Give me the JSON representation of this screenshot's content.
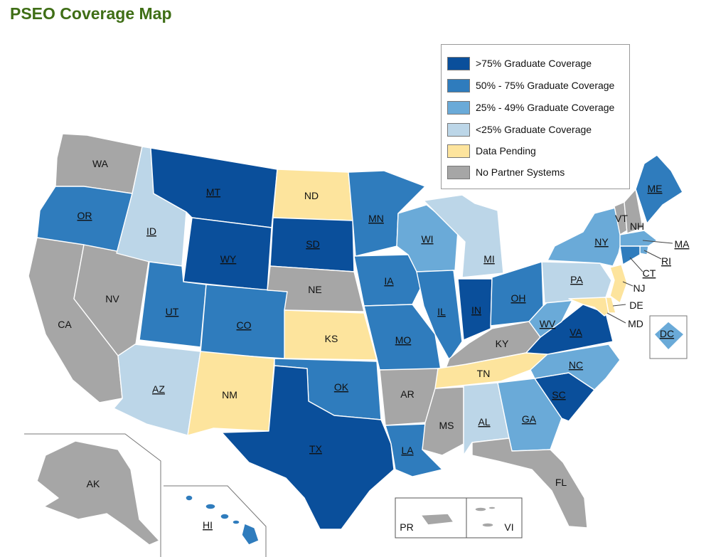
{
  "title": "PSEO Coverage Map",
  "colors": {
    "gt75": "#0a4f9b",
    "50to75": "#2f7cbd",
    "25to49": "#6aaad8",
    "lt25": "#bcd6e8",
    "pending": "#fde49d",
    "none": "#a6a6a6"
  },
  "legend": [
    {
      "key": "gt75",
      "label": ">75% Graduate Coverage"
    },
    {
      "key": "50to75",
      "label": "50% - 75% Graduate Coverage"
    },
    {
      "key": "25to49",
      "label": "25% - 49% Graduate Coverage"
    },
    {
      "key": "lt25",
      "label": "<25% Graduate Coverage"
    },
    {
      "key": "pending",
      "label": "Data Pending"
    },
    {
      "key": "none",
      "label": "No Partner Systems"
    }
  ],
  "states": {
    "WA": {
      "label": "WA",
      "cat": "none",
      "link": false
    },
    "OR": {
      "label": "OR",
      "cat": "50to75",
      "link": true
    },
    "CA": {
      "label": "CA",
      "cat": "none",
      "link": false
    },
    "NV": {
      "label": "NV",
      "cat": "none",
      "link": false
    },
    "ID": {
      "label": "ID",
      "cat": "lt25",
      "link": true
    },
    "MT": {
      "label": "MT",
      "cat": "gt75",
      "link": true
    },
    "WY": {
      "label": "WY",
      "cat": "gt75",
      "link": true
    },
    "UT": {
      "label": "UT",
      "cat": "50to75",
      "link": true
    },
    "CO": {
      "label": "CO",
      "cat": "50to75",
      "link": true
    },
    "AZ": {
      "label": "AZ",
      "cat": "lt25",
      "link": true
    },
    "NM": {
      "label": "NM",
      "cat": "pending",
      "link": false
    },
    "ND": {
      "label": "ND",
      "cat": "pending",
      "link": false
    },
    "SD": {
      "label": "SD",
      "cat": "gt75",
      "link": true
    },
    "NE": {
      "label": "NE",
      "cat": "none",
      "link": false
    },
    "KS": {
      "label": "KS",
      "cat": "pending",
      "link": false
    },
    "OK": {
      "label": "OK",
      "cat": "50to75",
      "link": true
    },
    "TX": {
      "label": "TX",
      "cat": "gt75",
      "link": true
    },
    "MN": {
      "label": "MN",
      "cat": "50to75",
      "link": true
    },
    "IA": {
      "label": "IA",
      "cat": "50to75",
      "link": true
    },
    "MO": {
      "label": "MO",
      "cat": "50to75",
      "link": true
    },
    "AR": {
      "label": "AR",
      "cat": "none",
      "link": false
    },
    "LA": {
      "label": "LA",
      "cat": "50to75",
      "link": true
    },
    "WI": {
      "label": "WI",
      "cat": "25to49",
      "link": true
    },
    "IL": {
      "label": "IL",
      "cat": "50to75",
      "link": true
    },
    "MI": {
      "label": "MI",
      "cat": "lt25",
      "link": true
    },
    "IN": {
      "label": "IN",
      "cat": "gt75",
      "link": true
    },
    "OH": {
      "label": "OH",
      "cat": "50to75",
      "link": true
    },
    "KY": {
      "label": "KY",
      "cat": "none",
      "link": false
    },
    "TN": {
      "label": "TN",
      "cat": "pending",
      "link": false
    },
    "MS": {
      "label": "MS",
      "cat": "none",
      "link": false
    },
    "AL": {
      "label": "AL",
      "cat": "lt25",
      "link": true
    },
    "GA": {
      "label": "GA",
      "cat": "25to49",
      "link": true
    },
    "FL": {
      "label": "FL",
      "cat": "none",
      "link": false
    },
    "SC": {
      "label": "SC",
      "cat": "gt75",
      "link": true
    },
    "NC": {
      "label": "NC",
      "cat": "25to49",
      "link": true
    },
    "VA": {
      "label": "VA",
      "cat": "gt75",
      "link": true
    },
    "WV": {
      "label": "WV",
      "cat": "25to49",
      "link": true
    },
    "PA": {
      "label": "PA",
      "cat": "lt25",
      "link": true
    },
    "NY": {
      "label": "NY",
      "cat": "25to49",
      "link": true
    },
    "VT": {
      "label": "VT",
      "cat": "none",
      "link": false
    },
    "NH": {
      "label": "NH",
      "cat": "none",
      "link": false
    },
    "ME": {
      "label": "ME",
      "cat": "50to75",
      "link": true
    },
    "MA": {
      "label": "MA",
      "cat": "25to49",
      "link": true
    },
    "RI": {
      "label": "RI",
      "cat": "25to49",
      "link": true
    },
    "CT": {
      "label": "CT",
      "cat": "50to75",
      "link": true
    },
    "NJ": {
      "label": "NJ",
      "cat": "pending",
      "link": false
    },
    "DE": {
      "label": "DE",
      "cat": "pending",
      "link": false
    },
    "MD": {
      "label": "MD",
      "cat": "pending",
      "link": false
    },
    "DC": {
      "label": "DC",
      "cat": "25to49",
      "link": true
    },
    "AK": {
      "label": "AK",
      "cat": "none",
      "link": false
    },
    "HI": {
      "label": "HI",
      "cat": "50to75",
      "link": true
    },
    "PR": {
      "label": "PR",
      "cat": "none",
      "link": false
    },
    "VI": {
      "label": "VI",
      "cat": "none",
      "link": false
    }
  }
}
